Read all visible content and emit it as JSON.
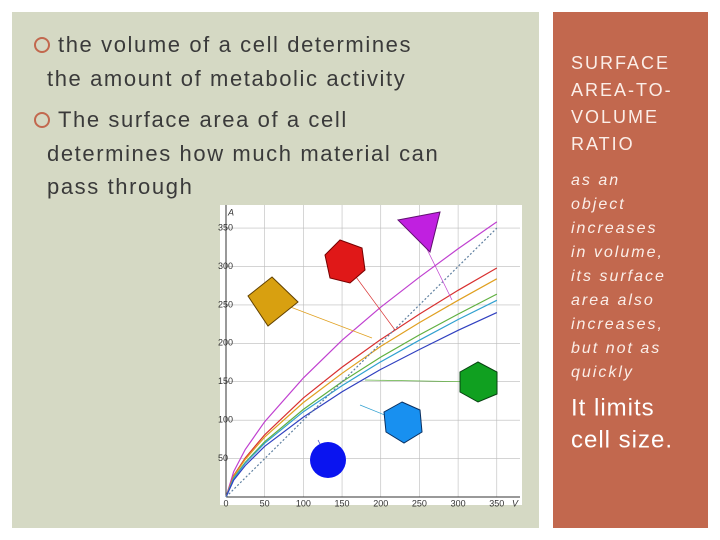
{
  "bullets": [
    {
      "lines": [
        "the volume of a cell determines",
        "the amount of metabolic activity"
      ]
    },
    {
      "lines": [
        "The surface area of a cell",
        "determines how much material can",
        "pass through"
      ]
    }
  ],
  "sidebar": {
    "heading": [
      "SURFACE",
      "AREA-TO-",
      "VOLUME",
      "RATIO"
    ],
    "body": [
      "as an",
      "object",
      "increases",
      "in volume,",
      "its surface",
      "area also",
      "increases,",
      "but not as",
      "quickly"
    ],
    "conclusion": [
      "It limits",
      "cell size."
    ]
  },
  "chart_data": {
    "type": "line",
    "x_label": "V",
    "y_label": "A",
    "x": [
      0,
      10,
      25,
      50,
      100,
      150,
      200,
      250,
      300,
      350
    ],
    "series": [
      {
        "color": "#c040d0",
        "values": [
          0,
          33,
          62,
          98,
          155,
          204,
          247,
          286,
          323,
          358
        ]
      },
      {
        "color": "#d83030",
        "values": [
          0,
          28,
          51,
          81,
          129,
          169,
          205,
          238,
          269,
          298
        ]
      },
      {
        "color": "#e0a020",
        "values": [
          0,
          27,
          49,
          78,
          123,
          161,
          196,
          227,
          256,
          284
        ]
      },
      {
        "color": "#60b040",
        "values": [
          0,
          25,
          45,
          72,
          114,
          150,
          182,
          211,
          238,
          264
        ]
      },
      {
        "color": "#30a0d0",
        "values": [
          0,
          24,
          44,
          70,
          111,
          145,
          176,
          204,
          231,
          256
        ]
      },
      {
        "color": "#3040c0",
        "values": [
          0,
          22,
          41,
          66,
          104,
          137,
          166,
          192,
          217,
          240
        ]
      },
      {
        "color": "#6080a0",
        "style": "dotted",
        "values": [
          0,
          10,
          25,
          50,
          100,
          150,
          200,
          250,
          300,
          350
        ]
      }
    ],
    "xlim": [
      0,
      380
    ],
    "ylim": [
      0,
      380
    ],
    "xticks": [
      0,
      50,
      100,
      150,
      200,
      250,
      300,
      350
    ],
    "yticks": [
      50,
      100,
      150,
      200,
      250,
      300,
      350
    ],
    "grid": true
  }
}
